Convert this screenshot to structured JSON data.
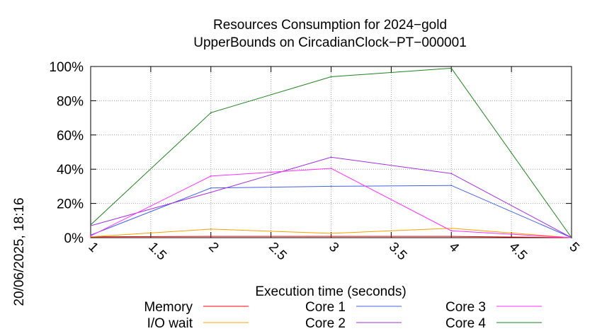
{
  "chart_data": {
    "type": "line",
    "title": "Resources Consumption for 2024−gold",
    "subtitle": "UpperBounds on CircadianClock−PT−000001",
    "xlabel": "Execution time (seconds)",
    "ylabel": "",
    "side_label": "20/06/2025, 18:16",
    "x": [
      1,
      2,
      3,
      4,
      5
    ],
    "xlim": [
      1,
      5
    ],
    "ylim": [
      0,
      100
    ],
    "x_ticks": [
      "1",
      "1.5",
      "2",
      "2.5",
      "3",
      "3.5",
      "4",
      "4.5",
      "5"
    ],
    "y_ticks": [
      "0%",
      "20%",
      "40%",
      "60%",
      "80%",
      "100%"
    ],
    "grid": true,
    "legend_position": "bottom",
    "series": [
      {
        "name": "Memory",
        "color": "#ff0000",
        "values": [
          0.5,
          0.8,
          0.8,
          0.8,
          0
        ]
      },
      {
        "name": "I/O wait",
        "color": "#ffa000",
        "values": [
          0.5,
          5,
          2.5,
          5.5,
          0
        ]
      },
      {
        "name": "Core 1",
        "color": "#4060e0",
        "values": [
          1.5,
          29,
          30,
          30.5,
          0
        ]
      },
      {
        "name": "Core 2",
        "color": "#a030e0",
        "values": [
          7,
          26.5,
          47,
          37.5,
          0
        ]
      },
      {
        "name": "Core 3",
        "color": "#ff30ff",
        "values": [
          1,
          36,
          40.5,
          4,
          0
        ]
      },
      {
        "name": "Core 4",
        "color": "#208020",
        "values": [
          7.5,
          73,
          94,
          99,
          0
        ]
      }
    ]
  }
}
